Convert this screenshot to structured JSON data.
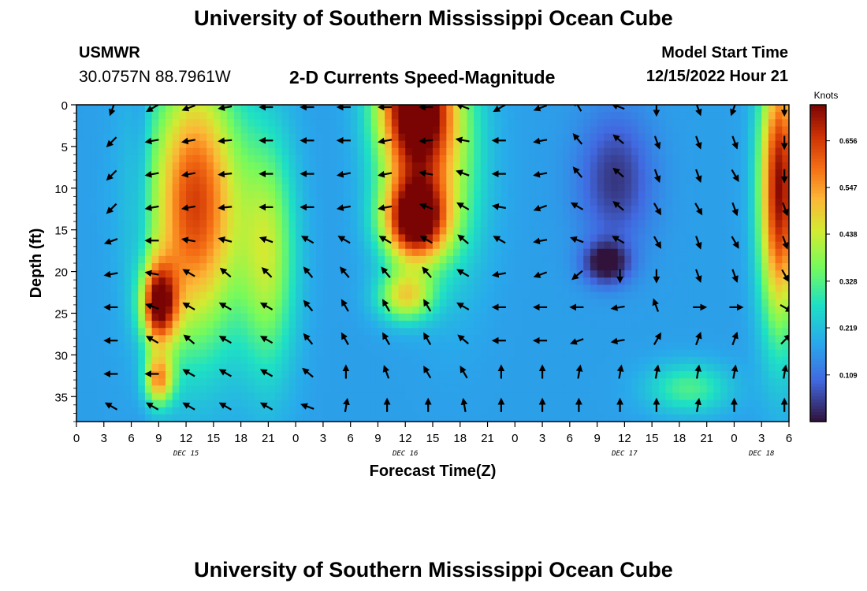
{
  "header": {
    "title": "University of Southern Mississippi Ocean Cube",
    "station": "USMWR",
    "coordinates": "30.0757N  88.7961W",
    "subtitle": "2-D Currents Speed-Magnitude",
    "model_start_label": "Model Start Time",
    "model_start_value": "12/15/2022 Hour 21"
  },
  "footer": {
    "title": "University of Southern Mississippi Ocean Cube"
  },
  "chart_data": {
    "type": "heatmap",
    "title": "2-D Currents Speed-Magnitude",
    "xlabel": "Forecast Time(Z)",
    "ylabel": "Depth (ft)",
    "x_unit": "forecast hour (from Dec 15 00Z)",
    "xlim": [
      0,
      78
    ],
    "ylim": [
      0,
      38
    ],
    "y_inverted": true,
    "x_ticks": [
      0,
      3,
      6,
      9,
      12,
      15,
      18,
      21,
      24,
      27,
      30,
      33,
      36,
      39,
      42,
      45,
      48,
      51,
      54,
      57,
      60,
      63,
      66,
      69,
      72,
      75,
      78
    ],
    "x_tick_labels": [
      "0",
      "3",
      "6",
      "9",
      "12",
      "15",
      "18",
      "21",
      "0",
      "3",
      "6",
      "9",
      "12",
      "15",
      "18",
      "21",
      "0",
      "3",
      "6",
      "9",
      "12",
      "15",
      "18",
      "21",
      "0",
      "3",
      "6"
    ],
    "y_ticks": [
      0,
      5,
      10,
      15,
      20,
      25,
      30,
      35
    ],
    "y_tick_labels": [
      "0",
      "5",
      "10",
      "15",
      "20",
      "25",
      "30",
      "35"
    ],
    "date_labels": [
      {
        "text": "DEC 15",
        "hour": 12
      },
      {
        "text": "DEC 16",
        "hour": 36
      },
      {
        "text": "DEC 17",
        "hour": 60
      },
      {
        "text": "DEC 18",
        "hour": 75
      }
    ],
    "colorbar": {
      "label": "Knots",
      "min": 0.0,
      "max": 0.74,
      "ticks": [
        0.109,
        0.219,
        0.328,
        0.438,
        0.547,
        0.656
      ],
      "tick_labels": [
        "0.109",
        "0.219",
        "0.328",
        "0.438",
        "0.547",
        "0.656"
      ]
    },
    "speed_features_knots": [
      {
        "t": 13,
        "z": 12,
        "s": 0.48,
        "rt": 5.0,
        "rz": 16
      },
      {
        "t": 9,
        "z": 24,
        "s": 0.5,
        "rt": 2.0,
        "rz": 5
      },
      {
        "t": 9,
        "z": 33,
        "s": 0.34,
        "rt": 1.6,
        "rz": 3
      },
      {
        "t": 21,
        "z": 18,
        "s": 0.24,
        "rt": 3.0,
        "rz": 14
      },
      {
        "t": 37,
        "z": 0,
        "s": 0.68,
        "rt": 4.0,
        "rz": 10
      },
      {
        "t": 37,
        "z": 14,
        "s": 0.58,
        "rt": 3.5,
        "rz": 5
      },
      {
        "t": 36,
        "z": 23,
        "s": 0.29,
        "rt": 3.0,
        "rz": 3
      },
      {
        "t": 41,
        "z": 7,
        "s": 0.16,
        "rt": 4.0,
        "rz": 14
      },
      {
        "t": 59,
        "z": 9,
        "s": -0.13,
        "rt": 4.0,
        "rz": 8
      },
      {
        "t": 58,
        "z": 19,
        "s": -0.19,
        "rt": 2.5,
        "rz": 2.5
      },
      {
        "t": 67,
        "z": 34,
        "s": 0.15,
        "rt": 4.5,
        "rz": 3
      },
      {
        "t": 77,
        "z": 10,
        "s": 0.56,
        "rt": 2.2,
        "rz": 16
      },
      {
        "t": 7,
        "z": 0,
        "s": -0.05,
        "rt": 1.0,
        "rz": 30
      }
    ],
    "vector_times_hours": [
      4,
      8.5,
      12.5,
      16.5,
      21,
      25.5,
      29.5,
      34,
      38.5,
      42.5,
      46.5,
      51,
      55,
      59.5,
      63.5,
      68,
      72,
      77.5
    ],
    "vector_depths_ft": [
      0,
      4,
      8,
      12,
      16,
      20,
      24,
      28,
      32,
      36
    ],
    "vector_angles_deg": [
      [
        250,
        210,
        200,
        190,
        180,
        180,
        180,
        180,
        180,
        160,
        210,
        200,
        120,
        160,
        270,
        290,
        250,
        270
      ],
      [
        225,
        190,
        190,
        185,
        180,
        180,
        180,
        190,
        185,
        170,
        180,
        190,
        130,
        140,
        290,
        290,
        290,
        270
      ],
      [
        225,
        190,
        190,
        185,
        180,
        180,
        190,
        190,
        170,
        160,
        180,
        190,
        130,
        140,
        290,
        290,
        300,
        270
      ],
      [
        225,
        190,
        190,
        185,
        180,
        180,
        190,
        190,
        160,
        150,
        170,
        200,
        150,
        140,
        300,
        300,
        290,
        290
      ],
      [
        200,
        180,
        170,
        165,
        160,
        150,
        150,
        150,
        150,
        140,
        150,
        190,
        160,
        150,
        300,
        290,
        300,
        290
      ],
      [
        190,
        170,
        150,
        140,
        135,
        130,
        130,
        130,
        130,
        150,
        190,
        200,
        220,
        270,
        270,
        290,
        290,
        300
      ],
      [
        180,
        160,
        150,
        150,
        150,
        130,
        120,
        120,
        120,
        150,
        180,
        180,
        180,
        190,
        110,
        0,
        0,
        330
      ],
      [
        180,
        150,
        140,
        150,
        150,
        130,
        120,
        120,
        120,
        140,
        180,
        180,
        200,
        190,
        60,
        70,
        70,
        45
      ],
      [
        180,
        180,
        150,
        150,
        150,
        140,
        90,
        110,
        120,
        120,
        90,
        90,
        80,
        80,
        80,
        80,
        80,
        80
      ],
      [
        150,
        150,
        150,
        150,
        150,
        160,
        80,
        90,
        90,
        100,
        90,
        90,
        90,
        90,
        90,
        80,
        90,
        90
      ]
    ]
  }
}
